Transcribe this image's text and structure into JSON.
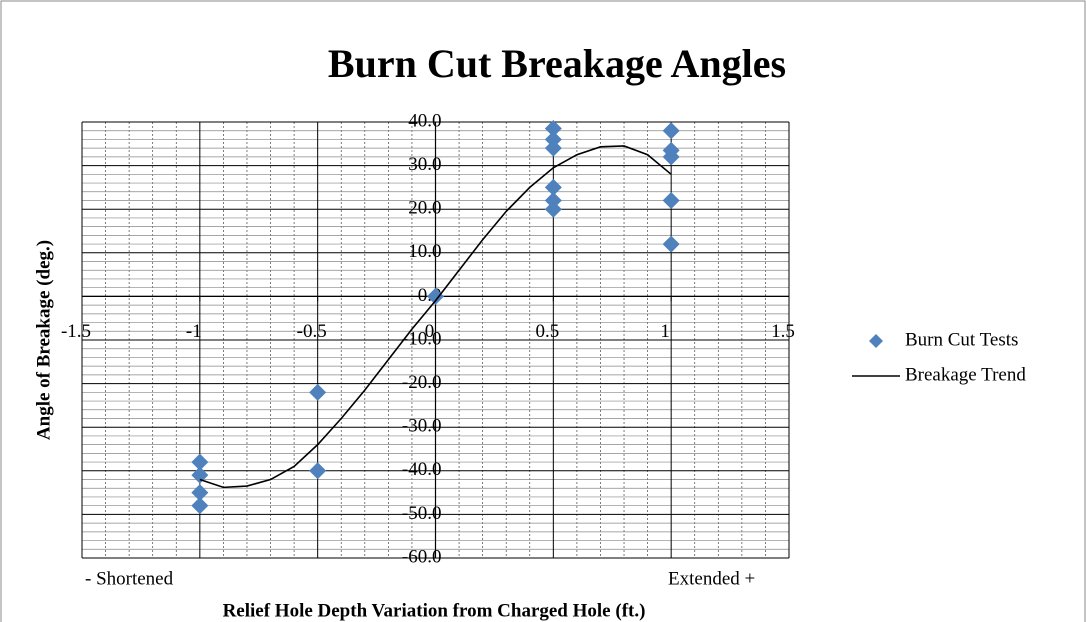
{
  "chart_data": {
    "type": "scatter",
    "title": "Burn Cut Breakage Angles",
    "x_label": "Relief Hole Depth Variation from Charged Hole (ft.)",
    "y_label": "Angle of Breakage (deg.)",
    "annotations": [
      "- Shortened",
      "Extended +"
    ],
    "xlim": [
      -1.5,
      1.5
    ],
    "xticks": [
      -1.5,
      -1,
      -0.5,
      0,
      0.5,
      1,
      1.5
    ],
    "ylim": [
      -60,
      40
    ],
    "yticks": [
      {
        "value": -60,
        "label": "-60.0"
      },
      {
        "value": -50,
        "label": "-50.0"
      },
      {
        "value": -40,
        "label": "-40.0"
      },
      {
        "value": -30,
        "label": "-30.0"
      },
      {
        "value": -20,
        "label": "-20.0"
      },
      {
        "value": -10,
        "label": "-10.0"
      },
      {
        "value": 0,
        "label": "0.0"
      },
      {
        "value": 10,
        "label": "10.0"
      },
      {
        "value": 20,
        "label": "20.0"
      },
      {
        "value": 30,
        "label": "30.0"
      },
      {
        "value": 40,
        "label": "40.0"
      }
    ],
    "grid": true,
    "legend": "right",
    "series": [
      {
        "name": "Burn Cut Tests",
        "color": "#4f81bd",
        "mode": "markers",
        "x": [
          -1,
          -1,
          -1,
          -1,
          -0.5,
          -0.5,
          0,
          0.5,
          0.5,
          0.5,
          0.5,
          0.5,
          0.5,
          1,
          1,
          1,
          1,
          1
        ],
        "values": [
          -38,
          -41,
          -45,
          -48,
          -22,
          -40,
          0,
          38.5,
          36,
          34,
          25,
          22,
          20,
          38,
          33.5,
          32,
          22,
          12
        ]
      },
      {
        "name": "Breakage Trend",
        "color": "#000000",
        "mode": "line",
        "x": [
          -1,
          -0.9,
          -0.8,
          -0.7,
          -0.6,
          -0.5,
          -0.4,
          -0.3,
          -0.2,
          -0.1,
          0,
          0.1,
          0.2,
          0.3,
          0.4,
          0.5,
          0.6,
          0.7,
          0.8,
          0.9,
          1
        ],
        "values": [
          -42,
          -43.8,
          -43.5,
          -42,
          -39,
          -34,
          -28,
          -21.5,
          -14.5,
          -7.5,
          -1,
          6,
          13,
          19.5,
          25,
          29.5,
          32.5,
          34.3,
          34.5,
          32.5,
          28
        ]
      }
    ]
  }
}
